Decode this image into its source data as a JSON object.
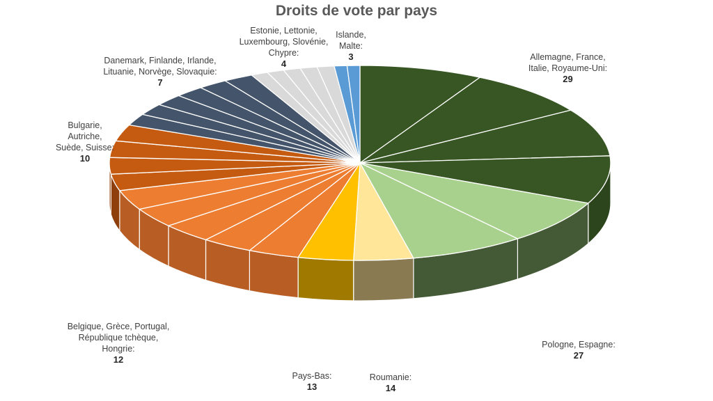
{
  "chart_data": {
    "type": "pie",
    "title": "Droits de vote par pays",
    "groups": [
      {
        "lines": [
          "Allemagne, France,",
          "Italie, Royaume-Uni:"
        ],
        "value": "29",
        "count": 4,
        "color": "#375623",
        "side": "#2c451c"
      },
      {
        "lines": [
          "Pologne, Espagne:"
        ],
        "value": "27",
        "count": 2,
        "color": "#a9d18e",
        "side": "#445a36"
      },
      {
        "lines": [
          "Roumanie:"
        ],
        "value": "14",
        "count": 1,
        "color": "#ffe699",
        "side": "#8a7a52"
      },
      {
        "lines": [
          "Pays-Bas:"
        ],
        "value": "13",
        "count": 1,
        "color": "#ffc000",
        "side": "#a07a00"
      },
      {
        "lines": [
          "Belgique, Grèce, Portugal,",
          "République tchèque,",
          "Hongrie:"
        ],
        "value": "12",
        "count": 5,
        "color": "#ed7d31",
        "side": "#b85d24"
      },
      {
        "lines": [
          "Bulgarie,",
          "Autriche,",
          "Suède, Suisse:"
        ],
        "value": "10",
        "count": 4,
        "color": "#c55a11",
        "side": "#8f3f0b"
      },
      {
        "lines": [
          "Danemark, Finlande, Irlande,",
          "Lituanie, Norvège, Slovaquie:"
        ],
        "value": "7",
        "count": 6,
        "color": "#44546a",
        "side": "#2f3b4b"
      },
      {
        "lines": [
          "Estonie, Lettonie,",
          "Luxembourg, Slovénie,",
          "Chypre:"
        ],
        "value": "4",
        "count": 5,
        "color": "#d9d9d9",
        "side": "#9a9a9a"
      },
      {
        "lines": [
          "Islande,",
          "Malte:"
        ],
        "value": "3",
        "count": 2,
        "color": "#5b9bd5",
        "side": "#3e6e99"
      }
    ]
  }
}
